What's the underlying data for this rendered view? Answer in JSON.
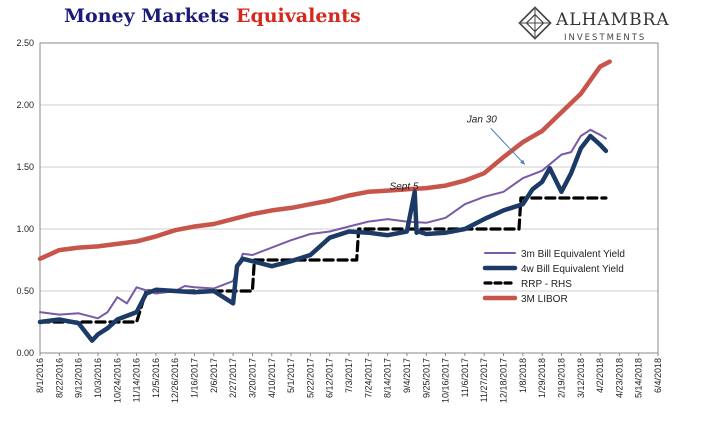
{
  "title": {
    "part1": "Money Markets",
    "part2": "Equivalents"
  },
  "logo": {
    "name": "ALHAMBRA",
    "sub": "INVESTMENTS"
  },
  "chart_data": {
    "type": "line",
    "title": "Money Markets Equivalents",
    "ylim": [
      0,
      2.5
    ],
    "yticks": [
      "0.00",
      "0.50",
      "1.00",
      "1.50",
      "2.00",
      "2.50"
    ],
    "xlabels": [
      "8/1/2016",
      "8/22/2016",
      "9/12/2016",
      "10/3/2016",
      "10/24/2016",
      "11/14/2016",
      "12/5/2016",
      "12/26/2016",
      "1/16/2017",
      "2/6/2017",
      "2/27/2017",
      "3/20/2017",
      "4/10/2017",
      "5/1/2017",
      "5/22/2017",
      "6/12/2017",
      "7/3/2017",
      "7/24/2017",
      "8/14/2017",
      "9/4/2017",
      "9/25/2017",
      "10/16/2017",
      "11/6/2017",
      "11/27/2017",
      "12/18/2017",
      "1/8/2018",
      "1/29/2018",
      "2/19/2018",
      "3/12/2018",
      "4/2/2018",
      "4/23/2018",
      "5/14/2018",
      "6/4/2018"
    ],
    "legend_position": "lower-right",
    "series": [
      {
        "name": "3m Bill Equivalent Yield",
        "color": "#7a5aa6",
        "style": "solid-thin",
        "x": [
          0,
          1,
          2,
          3,
          3.5,
          4,
          4.5,
          5,
          6,
          7,
          7.5,
          8,
          9,
          10,
          10.5,
          11,
          12,
          13,
          14,
          15,
          16,
          17,
          18,
          19,
          20,
          21,
          22,
          23,
          24,
          25,
          26,
          27,
          27.5,
          28,
          28.5,
          29,
          29.3
        ],
        "y": [
          0.33,
          0.31,
          0.32,
          0.28,
          0.33,
          0.45,
          0.4,
          0.53,
          0.48,
          0.5,
          0.54,
          0.53,
          0.52,
          0.58,
          0.8,
          0.79,
          0.85,
          0.91,
          0.96,
          0.98,
          1.02,
          1.06,
          1.08,
          1.06,
          1.05,
          1.09,
          1.2,
          1.26,
          1.3,
          1.41,
          1.47,
          1.6,
          1.62,
          1.75,
          1.8,
          1.76,
          1.73
        ]
      },
      {
        "name": "4w Bill Equivalent Yield",
        "color": "#1c3a66",
        "style": "solid-thick",
        "x": [
          0,
          1,
          2,
          2.7,
          3,
          3.5,
          4,
          5,
          5.5,
          6,
          7,
          8,
          9,
          10,
          10.2,
          10.5,
          11,
          12,
          13,
          14,
          15,
          16,
          17,
          18,
          19,
          19.4,
          19.5,
          19.6,
          20,
          21,
          22,
          23,
          24,
          25,
          25.5,
          26,
          26.4,
          27,
          27.5,
          28,
          28.5,
          29,
          29.3
        ],
        "y": [
          0.25,
          0.27,
          0.24,
          0.1,
          0.15,
          0.2,
          0.27,
          0.33,
          0.48,
          0.51,
          0.5,
          0.49,
          0.5,
          0.4,
          0.7,
          0.76,
          0.74,
          0.7,
          0.74,
          0.79,
          0.93,
          0.98,
          0.97,
          0.95,
          0.98,
          1.3,
          0.97,
          0.98,
          0.96,
          0.97,
          1.0,
          1.08,
          1.15,
          1.2,
          1.32,
          1.38,
          1.49,
          1.3,
          1.45,
          1.65,
          1.75,
          1.68,
          1.63
        ]
      },
      {
        "name": "RRP - RHS",
        "color": "#000000",
        "style": "dashed",
        "x": [
          0,
          5,
          5.5,
          11,
          11.1,
          16.4,
          16.5,
          24.8,
          24.9,
          29.3
        ],
        "y": [
          0.25,
          0.25,
          0.5,
          0.5,
          0.75,
          0.75,
          1.0,
          1.0,
          1.25,
          1.25
        ]
      },
      {
        "name": "3M LIBOR",
        "color": "#c8554b",
        "style": "solid-thick",
        "x": [
          0,
          1,
          2,
          3,
          4,
          5,
          6,
          7,
          8,
          9,
          10,
          11,
          12,
          13,
          14,
          15,
          16,
          17,
          18,
          19,
          20,
          21,
          22,
          23,
          24,
          25,
          26,
          27,
          28,
          29,
          29.5
        ],
        "y": [
          0.76,
          0.83,
          0.85,
          0.86,
          0.88,
          0.9,
          0.94,
          0.99,
          1.02,
          1.04,
          1.08,
          1.12,
          1.15,
          1.17,
          1.2,
          1.23,
          1.27,
          1.3,
          1.31,
          1.32,
          1.33,
          1.35,
          1.39,
          1.45,
          1.58,
          1.7,
          1.79,
          1.94,
          2.09,
          2.31,
          2.35
        ]
      }
    ],
    "annotations": [
      {
        "text": "Sept 5",
        "x": 18.1,
        "y": 1.32
      },
      {
        "text": "Jan 30",
        "x": 22.1,
        "y": 1.86,
        "arrow_to": [
          25.1,
          1.52
        ]
      }
    ]
  }
}
